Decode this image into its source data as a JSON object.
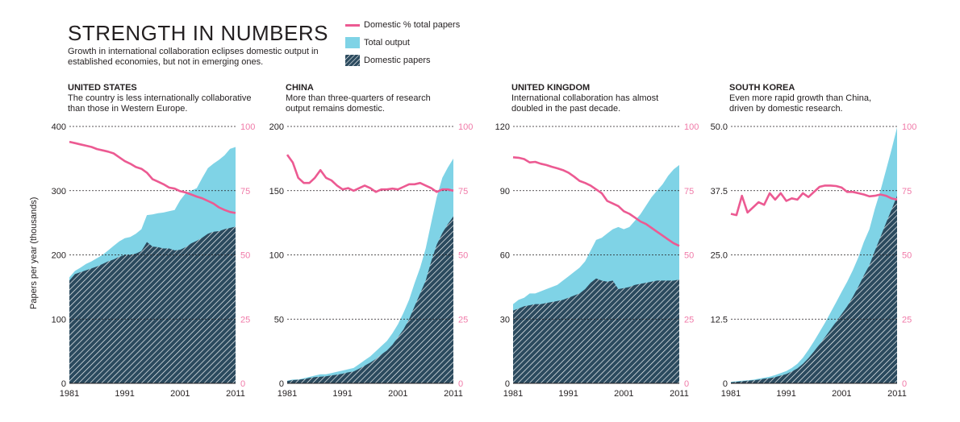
{
  "header": {
    "title": "STRENGTH IN NUMBERS",
    "subtitle": "Growth in international collaboration eclipses domestic output in established economies, but not in emerging ones."
  },
  "legend": {
    "line_label": "Domestic % total papers",
    "total_label": "Total output",
    "domestic_label": "Domestic papers"
  },
  "y_axis_label": "Papers per year (thousands)",
  "colors": {
    "total": "#7fd3e6",
    "domestic": "#2b4a5e",
    "pct_line": "#ec5a92",
    "pct_axis": "#f07aa8"
  },
  "chart_data": [
    {
      "type": "area",
      "name": "UNITED STATES",
      "description": "The country is less internationally collaborative than those in Western Europe.",
      "x": [
        1981,
        1982,
        1983,
        1984,
        1985,
        1986,
        1987,
        1988,
        1989,
        1990,
        1991,
        1992,
        1993,
        1994,
        1995,
        1996,
        1997,
        1998,
        1999,
        2000,
        2001,
        2002,
        2003,
        2004,
        2005,
        2006,
        2007,
        2008,
        2009,
        2010,
        2011
      ],
      "total": [
        165,
        175,
        180,
        186,
        190,
        195,
        200,
        207,
        214,
        221,
        226,
        228,
        233,
        240,
        262,
        263,
        265,
        266,
        268,
        270,
        285,
        296,
        300,
        304,
        320,
        335,
        342,
        348,
        355,
        365,
        368
      ],
      "domestic": [
        160,
        170,
        173,
        176,
        179,
        182,
        186,
        190,
        193,
        197,
        200,
        200,
        202,
        206,
        220,
        213,
        212,
        210,
        210,
        207,
        208,
        212,
        218,
        222,
        227,
        233,
        236,
        237,
        240,
        242,
        244
      ],
      "pct": [
        94,
        93.5,
        93,
        92.5,
        92,
        91.2,
        90.7,
        90.2,
        89.5,
        88,
        86.5,
        85.5,
        84.2,
        83.5,
        82,
        79.5,
        78.5,
        77.5,
        76.2,
        75.8,
        74.8,
        74.3,
        73.5,
        72.7,
        72,
        71,
        70,
        68.5,
        67.5,
        66.7,
        66.3
      ],
      "xticks": [
        1981,
        1991,
        2001,
        2011
      ],
      "ylim": [
        0,
        400
      ],
      "yticks": [
        0,
        100,
        200,
        300,
        400
      ],
      "ytick_labels": [
        "0",
        "100",
        "200",
        "300",
        "400"
      ],
      "pct_ticks": [
        "0",
        "25",
        "50",
        "75",
        "100"
      ]
    },
    {
      "type": "area",
      "name": "CHINA",
      "description": "More than three-quarters of research output remains domestic.",
      "x": [
        1981,
        1982,
        1983,
        1984,
        1985,
        1986,
        1987,
        1988,
        1989,
        1990,
        1991,
        1992,
        1993,
        1994,
        1995,
        1996,
        1997,
        1998,
        1999,
        2000,
        2001,
        2002,
        2003,
        2004,
        2005,
        2006,
        2007,
        2008,
        2009,
        2010,
        2011
      ],
      "total": [
        2,
        3,
        3,
        4,
        5,
        6,
        7,
        7,
        8,
        9,
        10,
        11,
        12,
        15,
        18,
        21,
        25,
        29,
        33,
        39,
        46,
        55,
        65,
        78,
        90,
        105,
        125,
        145,
        160,
        168,
        175
      ],
      "domestic": [
        1.8,
        2.5,
        2.8,
        3.3,
        4.2,
        4.8,
        5.2,
        5.5,
        6.2,
        6.8,
        7.5,
        8.5,
        9.2,
        11.5,
        13.8,
        16.2,
        19,
        22.5,
        25.5,
        30,
        36,
        42,
        50,
        60,
        70,
        80,
        95,
        108,
        117,
        124,
        130
      ],
      "pct": [
        89,
        86,
        80,
        78,
        78,
        80,
        83,
        80,
        79,
        77,
        75.5,
        76,
        75,
        76,
        77,
        76,
        74.5,
        75.5,
        75.5,
        75.8,
        75.5,
        76.5,
        77.5,
        77.5,
        78,
        77,
        76,
        74.5,
        75.5,
        75.5,
        75
      ],
      "xticks": [
        1981,
        1991,
        2001,
        2011
      ],
      "ylim": [
        0,
        200
      ],
      "yticks": [
        0,
        50,
        100,
        150,
        200
      ],
      "ytick_labels": [
        "0",
        "50",
        "100",
        "150",
        "200"
      ],
      "pct_ticks": [
        "0",
        "25",
        "50",
        "75",
        "100"
      ]
    },
    {
      "type": "area",
      "name": "UNITED KINGDOM",
      "description": "International collaboration has almost doubled in the past decade.",
      "x": [
        1981,
        1982,
        1983,
        1984,
        1985,
        1986,
        1987,
        1988,
        1989,
        1990,
        1991,
        1992,
        1993,
        1994,
        1995,
        1996,
        1997,
        1998,
        1999,
        2000,
        2001,
        2002,
        2003,
        2004,
        2005,
        2006,
        2007,
        2008,
        2009,
        2010,
        2011
      ],
      "total": [
        37,
        39,
        40,
        42,
        42,
        43,
        44,
        45,
        46,
        48,
        50,
        52,
        54,
        57,
        62,
        67,
        68,
        70,
        72,
        73,
        72,
        73,
        76,
        79,
        83,
        87,
        90,
        93,
        97,
        100,
        102
      ],
      "domestic": [
        34,
        35,
        36,
        36.5,
        37,
        37,
        37.5,
        38,
        38.5,
        39,
        40,
        41,
        42,
        44,
        47,
        49,
        48,
        47.5,
        48,
        44,
        44.5,
        45,
        46,
        46.5,
        47,
        47.5,
        48,
        48,
        48,
        48,
        48.5
      ],
      "pct": [
        88,
        87.8,
        87.3,
        86,
        86.2,
        85.5,
        85,
        84.3,
        83.7,
        83,
        82,
        80.5,
        78.8,
        78,
        77,
        75.5,
        74,
        71,
        70,
        69,
        67,
        66,
        64.5,
        63,
        62,
        60.5,
        59,
        57.5,
        56,
        54.5,
        53.5
      ],
      "xticks": [
        1981,
        1991,
        2001,
        2011
      ],
      "ylim": [
        0,
        120
      ],
      "yticks": [
        0,
        30,
        60,
        90,
        120
      ],
      "ytick_labels": [
        "0",
        "30",
        "60",
        "90",
        "120"
      ],
      "pct_ticks": [
        "0",
        "25",
        "50",
        "75",
        "100"
      ]
    },
    {
      "type": "area",
      "name": "SOUTH KOREA",
      "description": "Even more rapid growth than China, driven by domestic research.",
      "x": [
        1981,
        1982,
        1983,
        1984,
        1985,
        1986,
        1987,
        1988,
        1989,
        1990,
        1991,
        1992,
        1993,
        1994,
        1995,
        1996,
        1997,
        1998,
        1999,
        2000,
        2001,
        2002,
        2003,
        2004,
        2005,
        2006,
        2007,
        2008,
        2009,
        2010,
        2011
      ],
      "total": [
        0.3,
        0.4,
        0.5,
        0.6,
        0.7,
        0.9,
        1.1,
        1.3,
        1.6,
        2.0,
        2.4,
        3.0,
        3.8,
        5.0,
        6.5,
        8.2,
        10,
        11.8,
        13.8,
        15.8,
        17.8,
        19.8,
        22,
        24.5,
        27.5,
        30,
        34,
        37.5,
        41.5,
        45.5,
        49.8
      ],
      "domestic": [
        0.2,
        0.3,
        0.4,
        0.5,
        0.6,
        0.7,
        0.9,
        1.0,
        1.2,
        1.5,
        1.8,
        2.3,
        2.9,
        3.8,
        4.9,
        6.2,
        7.6,
        9.0,
        10.5,
        12.0,
        13.5,
        15.0,
        16.8,
        18.8,
        21.0,
        23.0,
        25.8,
        28.5,
        31.2,
        33.8,
        36.5
      ],
      "pct": [
        66,
        65.5,
        73,
        66.5,
        68.5,
        70.5,
        69.5,
        74,
        71.5,
        74,
        71,
        72,
        71.5,
        74,
        72.5,
        74.5,
        76.5,
        77,
        77,
        76.8,
        76.2,
        74.5,
        74.5,
        74,
        73.5,
        72.8,
        73,
        73.5,
        73,
        72,
        71.5
      ],
      "xticks": [
        1981,
        1991,
        2001,
        2011
      ],
      "ylim": [
        0,
        50
      ],
      "yticks": [
        0,
        12.5,
        25,
        37.5,
        50
      ],
      "ytick_labels": [
        "0",
        "12.5",
        "25.0",
        "37.5",
        "50.0"
      ],
      "pct_ticks": [
        "0",
        "25",
        "50",
        "75",
        "100"
      ]
    }
  ]
}
